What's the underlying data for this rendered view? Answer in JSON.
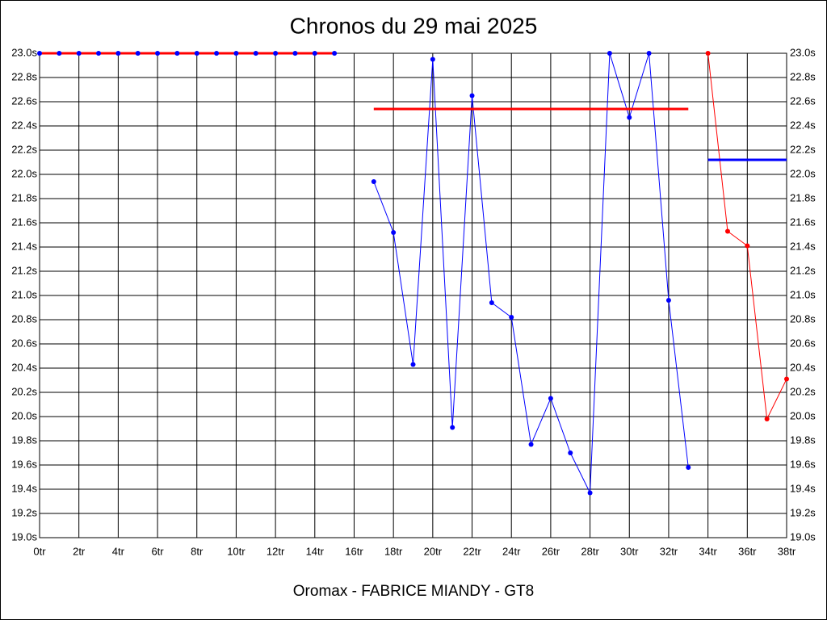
{
  "chart_data": {
    "type": "line",
    "title": "Chronos du 29 mai 2025",
    "footer": "Oromax - FABRICE MIANDY - GT8",
    "xlim": [
      0,
      38
    ],
    "ylim": [
      19.0,
      23.0
    ],
    "xticks": [
      {
        "value": 0,
        "label": "0tr"
      },
      {
        "value": 2,
        "label": "2tr"
      },
      {
        "value": 4,
        "label": "4tr"
      },
      {
        "value": 6,
        "label": "6tr"
      },
      {
        "value": 8,
        "label": "8tr"
      },
      {
        "value": 10,
        "label": "10tr"
      },
      {
        "value": 12,
        "label": "12tr"
      },
      {
        "value": 14,
        "label": "14tr"
      },
      {
        "value": 16,
        "label": "16tr"
      },
      {
        "value": 18,
        "label": "18tr"
      },
      {
        "value": 20,
        "label": "20tr"
      },
      {
        "value": 22,
        "label": "22tr"
      },
      {
        "value": 24,
        "label": "24tr"
      },
      {
        "value": 26,
        "label": "26tr"
      },
      {
        "value": 28,
        "label": "28tr"
      },
      {
        "value": 30,
        "label": "30tr"
      },
      {
        "value": 32,
        "label": "32tr"
      },
      {
        "value": 34,
        "label": "34tr"
      },
      {
        "value": 36,
        "label": "36tr"
      },
      {
        "value": 38,
        "label": "38tr"
      }
    ],
    "yticks": [
      {
        "value": 19.0,
        "label": "19.0s"
      },
      {
        "value": 19.2,
        "label": "19.2s"
      },
      {
        "value": 19.4,
        "label": "19.4s"
      },
      {
        "value": 19.6,
        "label": "19.6s"
      },
      {
        "value": 19.8,
        "label": "19.8s"
      },
      {
        "value": 20.0,
        "label": "20.0s"
      },
      {
        "value": 20.2,
        "label": "20.2s"
      },
      {
        "value": 20.4,
        "label": "20.4s"
      },
      {
        "value": 20.6,
        "label": "20.6s"
      },
      {
        "value": 20.8,
        "label": "20.8s"
      },
      {
        "value": 21.0,
        "label": "21.0s"
      },
      {
        "value": 21.2,
        "label": "21.2s"
      },
      {
        "value": 21.4,
        "label": "21.4s"
      },
      {
        "value": 21.6,
        "label": "21.6s"
      },
      {
        "value": 21.8,
        "label": "21.8s"
      },
      {
        "value": 22.0,
        "label": "22.0s"
      },
      {
        "value": 22.2,
        "label": "22.2s"
      },
      {
        "value": 22.4,
        "label": "22.4s"
      },
      {
        "value": 22.6,
        "label": "22.6s"
      },
      {
        "value": 22.8,
        "label": "22.8s"
      },
      {
        "value": 23.0,
        "label": "23.0s"
      }
    ],
    "grid": true,
    "series": [
      {
        "color": "#0000ff",
        "x": [
          0,
          1,
          2,
          3,
          4,
          5,
          6,
          7,
          8,
          9,
          10,
          11,
          12,
          13,
          14,
          15
        ],
        "values": [
          23.0,
          23.0,
          23.0,
          23.0,
          23.0,
          23.0,
          23.0,
          23.0,
          23.0,
          23.0,
          23.0,
          23.0,
          23.0,
          23.0,
          23.0,
          23.0
        ]
      },
      {
        "color": "#0000ff",
        "x": [
          17,
          18,
          19,
          20,
          21,
          22,
          23,
          24,
          25,
          26,
          27,
          28,
          29,
          30,
          31,
          32,
          33
        ],
        "values": [
          21.94,
          21.52,
          20.43,
          22.95,
          19.91,
          22.65,
          20.94,
          20.82,
          19.77,
          20.15,
          19.7,
          19.37,
          23.0,
          22.47,
          23.0,
          20.96,
          19.58
        ]
      },
      {
        "color": "#ff0000",
        "x": [
          34,
          35,
          36,
          37,
          38
        ],
        "values": [
          23.0,
          21.53,
          21.41,
          19.98,
          20.31
        ]
      }
    ],
    "averages": [
      {
        "value": 23.0,
        "from": 0,
        "to": 15,
        "color": "#ff0000"
      },
      {
        "value": 22.54,
        "from": 17,
        "to": 33,
        "color": "#ff0000"
      },
      {
        "value": 22.12,
        "from": 34,
        "to": 38,
        "color": "#0000ff"
      }
    ]
  }
}
